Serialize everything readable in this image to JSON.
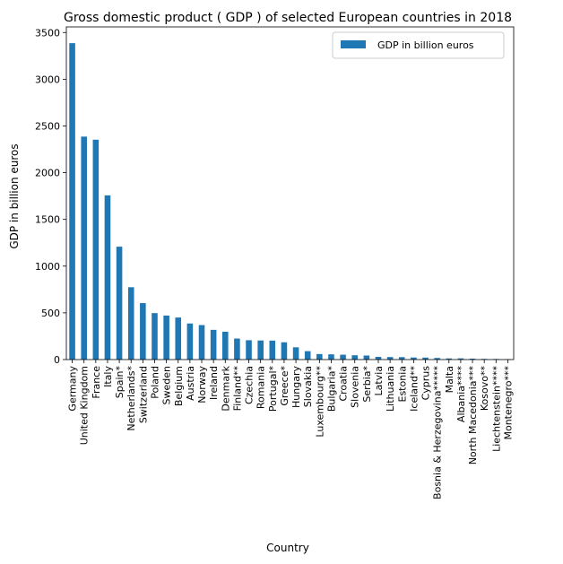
{
  "chart_data": {
    "type": "bar",
    "title": "Gross domestic product ( GDP ) of selected European countries in 2018",
    "xlabel": "Country",
    "ylabel": "GDP in billion euros",
    "ylim": [
      0,
      3560
    ],
    "yticks": [
      0,
      500,
      1000,
      1500,
      2000,
      2500,
      3000,
      3500
    ],
    "grid": false,
    "legend_position": "top-right",
    "bar_color": "#1f77b4",
    "categories": [
      "Germany",
      "United Kingdom",
      "France",
      "Italy",
      "Spain*",
      "Netherlands*",
      "Switzerland",
      "Poland",
      "Sweden",
      "Belgium",
      "Austria",
      "Norway",
      "Ireland",
      "Denmark",
      "Finland**",
      "Czechia",
      "Romania",
      "Portugal*",
      "Greece*",
      "Hungary",
      "Slovakia",
      "Luxembourg**",
      "Bulgaria*",
      "Croatia",
      "Slovenia",
      "Serbia*",
      "Latvia",
      "Lithuania",
      "Estonia",
      "Iceland**",
      "Cyprus",
      "Bosnia & Herzegovina*****",
      "Malta",
      "Albania****",
      "North Macedonia***",
      "Kosovo**",
      "Liechtenstein****",
      "Montenegro***"
    ],
    "series": [
      {
        "name": "GDP in billion euros",
        "values": [
          3386,
          2386,
          2353,
          1757,
          1208,
          774,
          604,
          497,
          471,
          450,
          386,
          369,
          318,
          298,
          225,
          207,
          204,
          203,
          185,
          131,
          90,
          59,
          56,
          52,
          46,
          43,
          29,
          27,
          26,
          22,
          21,
          17,
          12,
          13,
          10,
          7,
          6,
          4.6
        ]
      }
    ]
  }
}
